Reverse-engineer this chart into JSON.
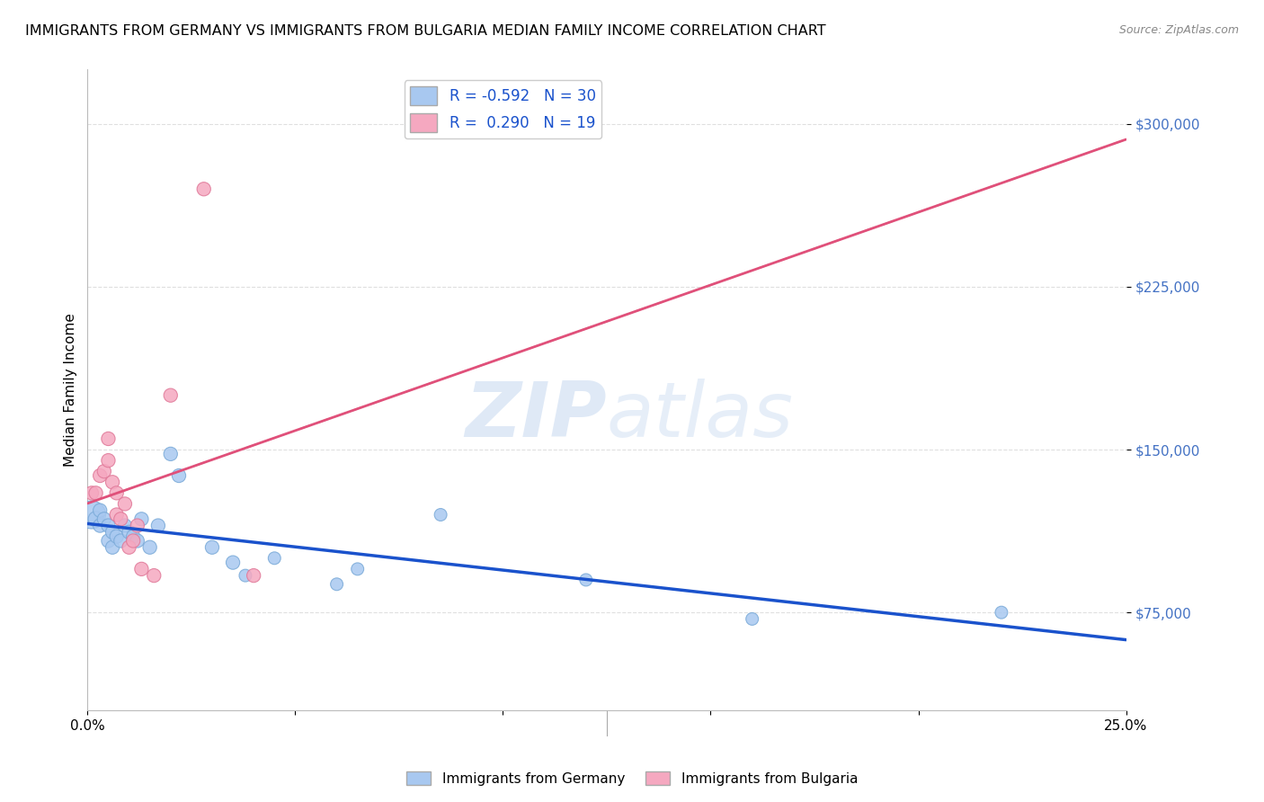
{
  "title": "IMMIGRANTS FROM GERMANY VS IMMIGRANTS FROM BULGARIA MEDIAN FAMILY INCOME CORRELATION CHART",
  "source": "Source: ZipAtlas.com",
  "ylabel": "Median Family Income",
  "watermark_zip": "ZIP",
  "watermark_atlas": "atlas",
  "xlim": [
    0.0,
    0.25
  ],
  "ylim": [
    30000,
    325000
  ],
  "xticks": [
    0.0,
    0.05,
    0.1,
    0.15,
    0.2,
    0.25
  ],
  "xticklabels": [
    "0.0%",
    "",
    "",
    "",
    "",
    "25.0%"
  ],
  "ytick_values": [
    75000,
    150000,
    225000,
    300000
  ],
  "ytick_labels": [
    "$75,000",
    "$150,000",
    "$225,000",
    "$300,000"
  ],
  "germany_color": "#A8C8F0",
  "germany_edge_color": "#7AAAD8",
  "germany_line_color": "#1A52CC",
  "bulgaria_color": "#F5A8C0",
  "bulgaria_edge_color": "#E07898",
  "bulgaria_line_color": "#E0507A",
  "bulgaria_dash_color": "#D09090",
  "legend_R_germany": "-0.592",
  "legend_N_germany": "30",
  "legend_R_bulgaria": "0.290",
  "legend_N_bulgaria": "19",
  "germany_x": [
    0.001,
    0.002,
    0.003,
    0.003,
    0.004,
    0.005,
    0.005,
    0.006,
    0.006,
    0.007,
    0.008,
    0.009,
    0.01,
    0.011,
    0.012,
    0.013,
    0.015,
    0.017,
    0.02,
    0.022,
    0.03,
    0.035,
    0.038,
    0.045,
    0.06,
    0.065,
    0.085,
    0.12,
    0.16,
    0.22
  ],
  "germany_y": [
    120000,
    118000,
    115000,
    122000,
    118000,
    115000,
    108000,
    112000,
    105000,
    110000,
    108000,
    115000,
    112000,
    110000,
    108000,
    118000,
    105000,
    115000,
    148000,
    138000,
    105000,
    98000,
    92000,
    100000,
    88000,
    95000,
    120000,
    90000,
    72000,
    75000
  ],
  "germany_size": [
    500,
    150,
    120,
    120,
    120,
    120,
    120,
    120,
    120,
    120,
    120,
    120,
    120,
    120,
    120,
    120,
    120,
    120,
    120,
    120,
    120,
    120,
    100,
    100,
    100,
    100,
    100,
    100,
    100,
    100
  ],
  "bulgaria_x": [
    0.001,
    0.002,
    0.003,
    0.004,
    0.005,
    0.005,
    0.006,
    0.007,
    0.007,
    0.008,
    0.009,
    0.01,
    0.011,
    0.012,
    0.013,
    0.016,
    0.02,
    0.028,
    0.04
  ],
  "bulgaria_y": [
    130000,
    130000,
    138000,
    140000,
    155000,
    145000,
    135000,
    130000,
    120000,
    118000,
    125000,
    105000,
    108000,
    115000,
    95000,
    92000,
    175000,
    270000,
    92000
  ],
  "bulgaria_size": [
    120,
    120,
    120,
    120,
    120,
    120,
    120,
    120,
    120,
    120,
    120,
    120,
    120,
    120,
    120,
    120,
    120,
    120,
    120
  ],
  "title_fontsize": 11.5,
  "axis_label_fontsize": 11,
  "tick_fontsize": 11,
  "background_color": "#FFFFFF",
  "grid_color": "#DCDCDC"
}
